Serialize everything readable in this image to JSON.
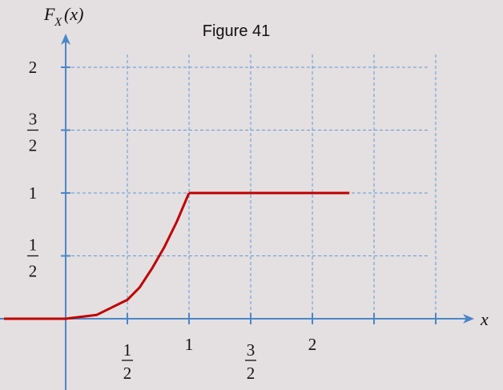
{
  "chart_data": {
    "type": "line",
    "title": "Figure 41",
    "xlabel": "x",
    "ylabel": {
      "main": "F",
      "sub": "X",
      "arg": "(x)"
    },
    "xlim": [
      -0.5,
      2.3
    ],
    "ylim": [
      -0.4,
      2.4
    ],
    "grid": true,
    "x_ticks": [
      {
        "value": 0.5,
        "kind": "fraction",
        "num": "1",
        "den": "2"
      },
      {
        "value": 1.0,
        "kind": "text",
        "text": "1"
      },
      {
        "value": 1.5,
        "kind": "fraction",
        "num": "3",
        "den": "2"
      },
      {
        "value": 2.0,
        "kind": "text",
        "text": "2"
      }
    ],
    "x_grid": [
      0.5,
      1.0,
      1.5,
      2.0,
      2.5,
      3.0
    ],
    "x_axis_ticks": [
      0.5,
      1.0,
      1.5,
      2.0,
      2.5,
      3.0
    ],
    "y_ticks": [
      {
        "value": 0.5,
        "kind": "fraction",
        "num": "1",
        "den": "2"
      },
      {
        "value": 1.0,
        "kind": "text",
        "text": "1"
      },
      {
        "value": 1.5,
        "kind": "fraction",
        "num": "3",
        "den": "2"
      },
      {
        "value": 2.0,
        "kind": "text",
        "text": "2"
      }
    ],
    "series": [
      {
        "x": [
          -0.5,
          0.0,
          0.25,
          0.5,
          0.6,
          0.7,
          0.8,
          0.9,
          1.0
        ],
        "y": [
          0.0,
          0.0,
          0.03,
          0.15,
          0.25,
          0.4,
          0.57,
          0.77,
          1.0
        ]
      },
      {
        "x": [
          1.0,
          2.3
        ],
        "y": [
          1.0,
          1.0
        ]
      }
    ],
    "colors": {
      "curve": "#c00000",
      "axis": "#4a86c8",
      "grid": "#5b9bd5"
    }
  }
}
